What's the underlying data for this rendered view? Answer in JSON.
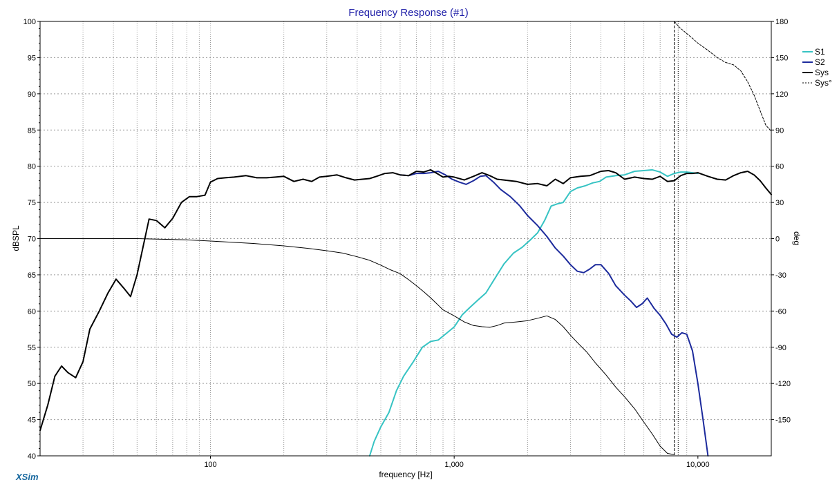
{
  "chart_data": {
    "type": "line",
    "title": "Frequency Response (#1)",
    "xlabel": "frequency [Hz]",
    "ylabel": "dBSPL",
    "y2label": "deg",
    "x_scale": "log",
    "xlim": [
      20,
      20000
    ],
    "ylim": [
      40,
      100
    ],
    "y2lim": [
      -180,
      180
    ],
    "x_tick_labels": [
      {
        "value": 100,
        "label": "100"
      },
      {
        "value": 1000,
        "label": "1,000"
      },
      {
        "value": 10000,
        "label": "10,000"
      }
    ],
    "y_ticks": [
      40,
      45,
      50,
      55,
      60,
      65,
      70,
      75,
      80,
      85,
      90,
      95,
      100
    ],
    "y2_ticks": [
      -150,
      -120,
      -90,
      -60,
      -30,
      0,
      30,
      60,
      90,
      120,
      150,
      180
    ],
    "grid": true,
    "legend_position": "right",
    "series": [
      {
        "name": "S1",
        "color": "#36c3c3",
        "style": "solid",
        "axis": "left",
        "x": [
          450,
          470,
          500,
          540,
          580,
          620,
          680,
          740,
          800,
          860,
          920,
          1000,
          1080,
          1160,
          1250,
          1350,
          1450,
          1600,
          1750,
          1900,
          2050,
          2200,
          2350,
          2500,
          2650,
          2800,
          3000,
          3200,
          3450,
          3700,
          3950,
          4200,
          4600,
          5000,
          5500,
          6000,
          6500,
          7000,
          7500,
          8000,
          8500,
          9000,
          9500,
          10000
        ],
        "y": [
          40,
          42,
          44,
          46,
          49,
          51,
          53,
          55,
          55.8,
          56,
          56.8,
          57.8,
          59.5,
          60.5,
          61.5,
          62.5,
          64.2,
          66.5,
          68,
          68.8,
          69.8,
          70.8,
          72.5,
          74.5,
          74.8,
          75,
          76.5,
          77,
          77.3,
          77.7,
          77.9,
          78.5,
          78.7,
          78.8,
          79.3,
          79.4,
          79.5,
          79.2,
          78.6,
          79.0,
          79.2,
          79.2,
          79.1,
          79.0
        ]
      },
      {
        "name": "S2",
        "color": "#1c2a9c",
        "style": "solid",
        "axis": "left",
        "x": [
          600,
          650,
          700,
          750,
          800,
          860,
          920,
          980,
          1050,
          1120,
          1200,
          1280,
          1350,
          1450,
          1550,
          1700,
          1850,
          2000,
          2200,
          2400,
          2600,
          2800,
          3000,
          3200,
          3400,
          3600,
          3800,
          4000,
          4300,
          4600,
          5000,
          5300,
          5600,
          5900,
          6200,
          6600,
          7000,
          7400,
          7800,
          8200,
          8600,
          9000,
          9500,
          10000,
          10500,
          11000
        ],
        "y": [
          78.8,
          78.7,
          79.0,
          79.0,
          79.1,
          79.3,
          78.8,
          78.2,
          77.8,
          77.5,
          78.0,
          78.6,
          78.7,
          77.8,
          76.8,
          75.8,
          74.6,
          73.2,
          71.8,
          70.3,
          68.7,
          67.6,
          66.4,
          65.5,
          65.3,
          65.8,
          66.4,
          66.4,
          65.2,
          63.5,
          62.2,
          61.4,
          60.5,
          61.0,
          61.8,
          60.4,
          59.4,
          58.2,
          56.8,
          56.4,
          57.0,
          56.8,
          54.5,
          50,
          45,
          40
        ]
      },
      {
        "name": "Sys",
        "color": "#000000",
        "style": "solid",
        "axis": "left",
        "x": [
          20,
          21.5,
          23,
          24.5,
          26,
          28,
          30,
          32,
          35,
          38,
          41,
          44,
          47,
          50,
          53,
          56,
          60,
          65,
          70,
          76,
          82,
          88,
          95,
          100,
          107,
          115,
          125,
          140,
          155,
          170,
          185,
          200,
          220,
          240,
          260,
          280,
          300,
          330,
          360,
          390,
          420,
          450,
          480,
          520,
          560,
          600,
          650,
          700,
          750,
          800,
          850,
          900,
          950,
          1000,
          1100,
          1200,
          1300,
          1400,
          1500,
          1600,
          1800,
          2000,
          2200,
          2400,
          2600,
          2800,
          3000,
          3300,
          3600,
          4000,
          4300,
          4600,
          5000,
          5500,
          6000,
          6500,
          7000,
          7500,
          8000,
          8500,
          9000,
          9500,
          10000,
          11000,
          12000,
          13000,
          14000,
          15000,
          16000,
          17000,
          18000,
          19000,
          20000
        ],
        "y": [
          43.5,
          47,
          51,
          52.4,
          51.5,
          50.8,
          53,
          57.5,
          60,
          62.5,
          64.4,
          63.2,
          62,
          65,
          69,
          72.7,
          72.5,
          71.5,
          72.8,
          75,
          75.8,
          75.8,
          76,
          77.8,
          78.3,
          78.4,
          78.5,
          78.7,
          78.4,
          78.4,
          78.5,
          78.6,
          77.9,
          78.2,
          77.9,
          78.5,
          78.6,
          78.8,
          78.4,
          78.1,
          78.2,
          78.3,
          78.6,
          79.0,
          79.1,
          78.8,
          78.7,
          79.3,
          79.2,
          79.5,
          79.0,
          78.5,
          78.6,
          78.5,
          78.1,
          78.6,
          79.1,
          78.7,
          78.2,
          78.1,
          77.9,
          77.5,
          77.6,
          77.3,
          78.2,
          77.6,
          78.4,
          78.6,
          78.7,
          79.3,
          79.4,
          79.1,
          78.2,
          78.5,
          78.3,
          78.2,
          78.6,
          77.9,
          78.0,
          78.7,
          79.0,
          79.0,
          79.1,
          78.6,
          78.2,
          78.1,
          78.7,
          79.1,
          79.3,
          78.8,
          78.0,
          77.0,
          76.1
        ]
      },
      {
        "name": "Sys°",
        "color": "#000000",
        "style": "dotted",
        "axis": "right",
        "x": [
          20,
          50,
          80,
          100,
          150,
          200,
          250,
          300,
          350,
          400,
          450,
          500,
          550,
          600,
          650,
          700,
          750,
          800,
          900,
          1000,
          1100,
          1200,
          1300,
          1400,
          1500,
          1600,
          1800,
          2000,
          2200,
          2400,
          2600,
          2800,
          3000,
          3200,
          3500,
          3800,
          4200,
          4600,
          5000,
          5500,
          6000,
          6500,
          7000,
          7500,
          8000
        ],
        "y2": [
          0,
          0,
          -1,
          -2,
          -4,
          -6,
          -8,
          -10,
          -12,
          -15,
          -18,
          -22,
          -26,
          -29,
          -34,
          -39,
          -44,
          -49,
          -59,
          -64,
          -69,
          -72,
          -73,
          -73.5,
          -72,
          -70,
          -69,
          -68,
          -66,
          -64,
          -67,
          -73,
          -80,
          -86,
          -94,
          -103,
          -113,
          -123,
          -131,
          -141,
          -152,
          -162,
          -172,
          -178,
          -179
        ]
      },
      {
        "name": "Sys° (wrapped)",
        "legend": false,
        "color": "#000000",
        "style": "dotted",
        "axis": "right",
        "x": [
          8000,
          8400,
          9000,
          9500,
          10000,
          11000,
          12000,
          13000,
          14000,
          15000,
          16000,
          17000,
          18000,
          19000,
          20000
        ],
        "y2": [
          180,
          175,
          170,
          166,
          162,
          156,
          150,
          146,
          144,
          139,
          130,
          119,
          106,
          94,
          89
        ]
      }
    ],
    "vertical_markers": [
      {
        "x": 8000,
        "style": "dashed"
      },
      {
        "x": 8300,
        "style": "dotted"
      }
    ],
    "brand": "XSim"
  }
}
